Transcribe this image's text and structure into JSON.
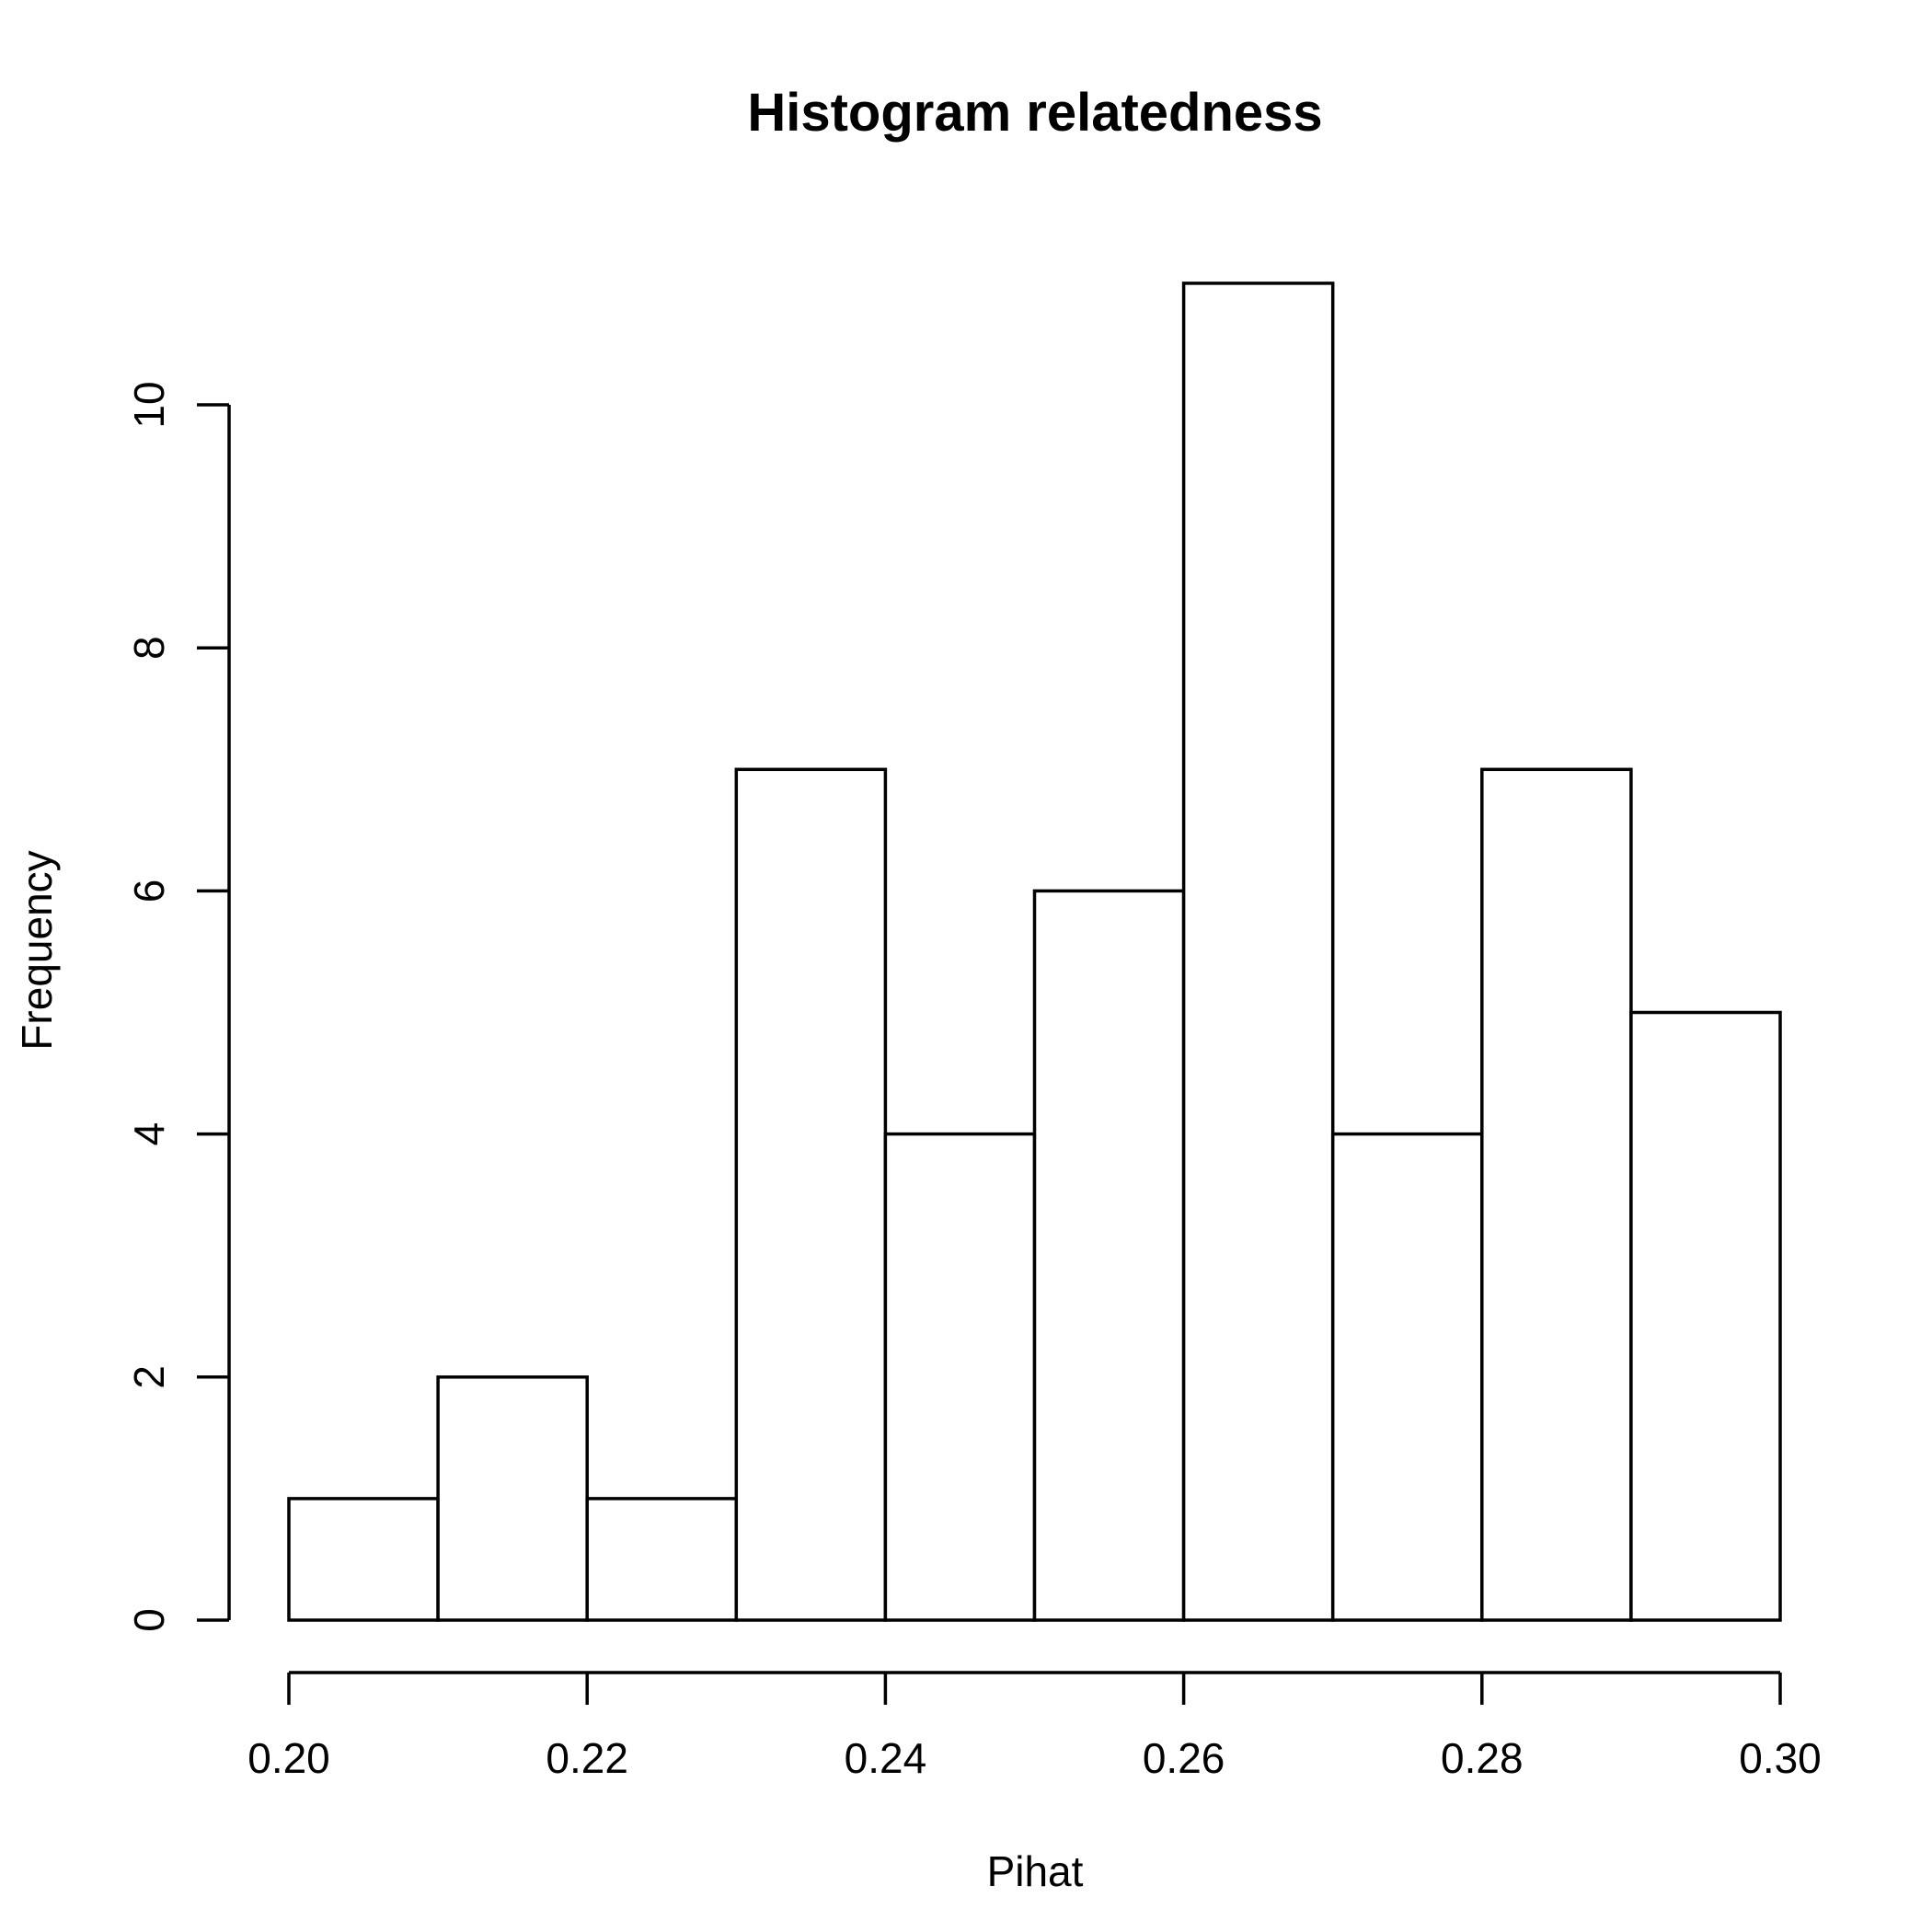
{
  "chart_data": {
    "type": "bar",
    "title": "Histogram relatedness",
    "xlabel": "Pihat",
    "ylabel": "Frequency",
    "bin_edges": [
      0.2,
      0.21,
      0.22,
      0.23,
      0.24,
      0.25,
      0.26,
      0.27,
      0.28,
      0.29,
      0.3
    ],
    "values": [
      1,
      2,
      1,
      7,
      4,
      6,
      11,
      4,
      7,
      5
    ],
    "xlim": [
      0.2,
      0.3
    ],
    "ylim": [
      0,
      10
    ],
    "x_ticks": [
      "0.20",
      "0.22",
      "0.24",
      "0.26",
      "0.28",
      "0.30"
    ],
    "y_ticks": [
      "0",
      "2",
      "4",
      "6",
      "8",
      "10"
    ],
    "grid": false,
    "colors": {
      "bar_fill": "#ffffff",
      "bar_stroke": "#000000"
    }
  }
}
